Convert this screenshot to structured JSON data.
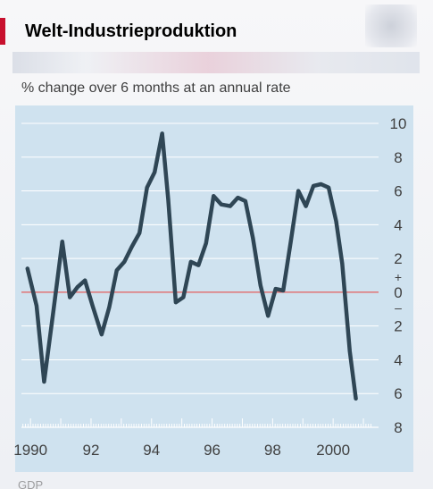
{
  "header": {
    "title": "Welt-Industrieproduktion"
  },
  "colors": {
    "accent": "#c8102e",
    "panel": "#cfe2ef",
    "line": "#2f4655",
    "gridline": "#ffffff",
    "zero_line": "#e35d5d",
    "text": "#3f3f3f"
  },
  "chart_data": {
    "type": "line",
    "title": "Welt-Industrieproduktion",
    "subtitle": "% change over 6 months at an annual rate",
    "xlabel": "",
    "ylabel": "",
    "x_ticks": [
      {
        "value": 1990,
        "label": "1990"
      },
      {
        "value": 1992,
        "label": "92"
      },
      {
        "value": 1994,
        "label": "94"
      },
      {
        "value": 1996,
        "label": "96"
      },
      {
        "value": 1998,
        "label": "98"
      },
      {
        "value": 2000,
        "label": "2000"
      }
    ],
    "y_ticks": [
      {
        "value": 10,
        "label": "10"
      },
      {
        "value": 8,
        "label": "8"
      },
      {
        "value": 6,
        "label": "6"
      },
      {
        "value": 4,
        "label": "4"
      },
      {
        "value": 2,
        "label": "2"
      },
      {
        "value": 0,
        "label": "0"
      },
      {
        "value": -2,
        "label": "2"
      },
      {
        "value": -4,
        "label": "4"
      },
      {
        "value": -6,
        "label": "6"
      },
      {
        "value": -8,
        "label": "8"
      }
    ],
    "sign_labels": {
      "plus": "+",
      "minus": "–"
    },
    "xlim": [
      1989.7,
      2001.5
    ],
    "ylim": [
      -8,
      10
    ],
    "grid": true,
    "series": [
      {
        "x": [
          1989.9,
          1990.2,
          1990.45,
          1990.75,
          1991.05,
          1991.3,
          1991.55,
          1991.8,
          1992.05,
          1992.35,
          1992.6,
          1992.85,
          1993.1,
          1993.35,
          1993.6,
          1993.85,
          1994.1,
          1994.35,
          1994.55,
          1994.8,
          1995.05,
          1995.3,
          1995.55,
          1995.8,
          1996.05,
          1996.3,
          1996.6,
          1996.85,
          1997.1,
          1997.35,
          1997.6,
          1997.85,
          1998.1,
          1998.35,
          1998.6,
          1998.85,
          1999.1,
          1999.35,
          1999.6,
          1999.85,
          2000.1,
          2000.3,
          2000.55,
          2000.75,
          2000.95,
          2001.1
        ],
        "values": [
          1.4,
          -0.8,
          -5.3,
          -1.2,
          3.0,
          -0.3,
          0.3,
          0.7,
          -0.8,
          -2.5,
          -0.9,
          1.3,
          1.8,
          2.7,
          3.5,
          6.2,
          7.1,
          9.4,
          5.5,
          -0.6,
          -0.3,
          1.8,
          1.6,
          2.9,
          5.7,
          5.2,
          5.1,
          5.6,
          5.4,
          3.2,
          0.4,
          -1.4,
          0.2,
          0.1,
          3.0,
          6.0,
          5.1,
          6.3,
          6.4,
          6.2,
          4.2,
          1.7,
          -3.5,
          -6.3,
          null,
          null
        ]
      }
    ]
  },
  "footer": {
    "partial_text": "GDP"
  }
}
